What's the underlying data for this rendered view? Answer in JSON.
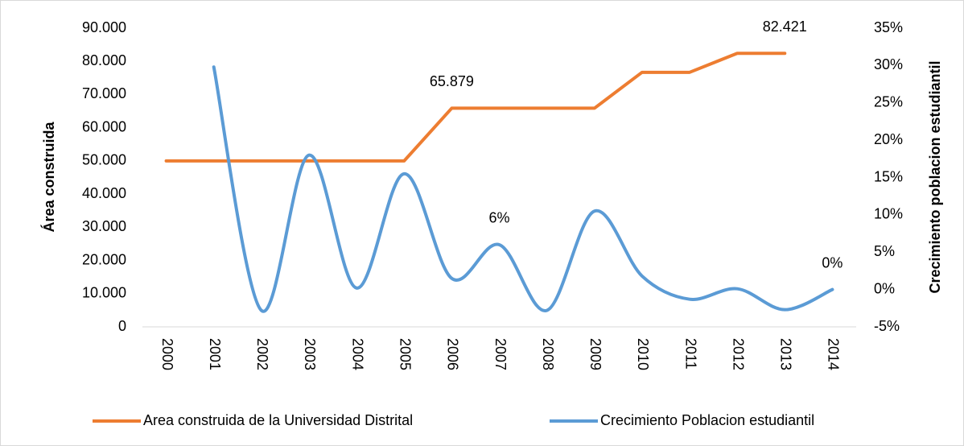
{
  "chart_data": {
    "type": "line",
    "categories": [
      "2000",
      "2001",
      "2002",
      "2003",
      "2004",
      "2005",
      "2006",
      "2007",
      "2008",
      "2009",
      "2010",
      "2011",
      "2012",
      "2013",
      "2014"
    ],
    "series": [
      {
        "name": "Area construida de la Universidad Distrital",
        "color": "#ed7d31",
        "values": [
          50000,
          50000,
          50000,
          50000,
          50000,
          50000,
          65879,
          65879,
          65879,
          65879,
          76700,
          76700,
          82421,
          82421,
          null
        ],
        "value_labels": [
          null,
          null,
          null,
          null,
          null,
          null,
          "65.879",
          null,
          null,
          null,
          null,
          null,
          null,
          "82.421",
          null
        ]
      },
      {
        "name": "Crecimiento Poblacion estudiantil",
        "color": "#5b9bd5",
        "axis": "y2",
        "smooth": true,
        "values": [
          null,
          29.8,
          -2.8,
          18.0,
          0.2,
          15.5,
          1.5,
          6,
          -2.8,
          10.5,
          1.8,
          -1.3,
          0.1,
          -2.7,
          0
        ],
        "value_labels": [
          null,
          null,
          null,
          null,
          null,
          null,
          null,
          "6%",
          null,
          null,
          null,
          null,
          null,
          null,
          "0%"
        ]
      }
    ],
    "ylabel": "Área construida",
    "y2label": "Crecimiento poblacion estudiantil",
    "ylim": [
      0,
      90000
    ],
    "yticks": [
      0,
      {
        "value": 10000,
        "label": "10.000"
      },
      {
        "value": 20000,
        "label": "20.000"
      },
      {
        "value": 30000,
        "label": "30.000"
      },
      {
        "value": 40000,
        "label": "40.000"
      },
      {
        "value": 50000,
        "label": "50.000"
      },
      {
        "value": 60000,
        "label": "60.000"
      },
      {
        "value": 70000,
        "label": "70.000"
      },
      {
        "value": 80000,
        "label": "80.000"
      },
      {
        "value": 90000,
        "label": "90.000"
      }
    ],
    "y2lim": [
      -5,
      35
    ],
    "y2ticks": [
      {
        "value": -5,
        "label": "-5%"
      },
      {
        "value": 0,
        "label": "0%"
      },
      {
        "value": 5,
        "label": "5%"
      },
      {
        "value": 10,
        "label": "10%"
      },
      {
        "value": 15,
        "label": "15%"
      },
      {
        "value": 20,
        "label": "20%"
      },
      {
        "value": 25,
        "label": "25%"
      },
      {
        "value": 30,
        "label": "30%"
      },
      {
        "value": 35,
        "label": "35%"
      }
    ],
    "legend": "bottom"
  }
}
